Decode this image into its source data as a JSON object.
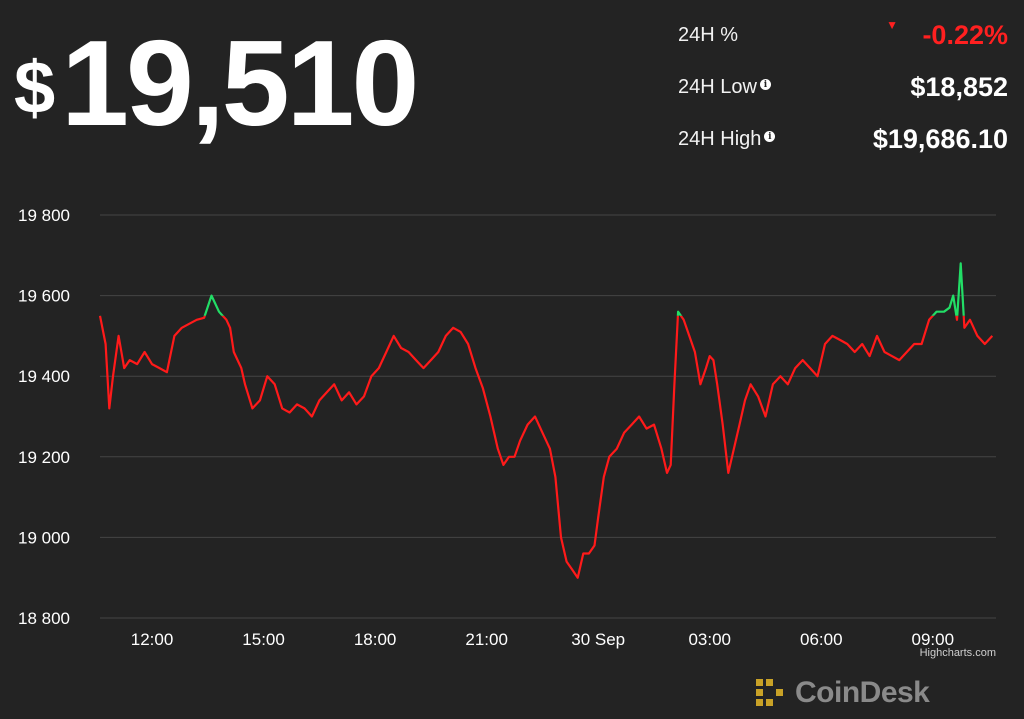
{
  "header": {
    "currency_symbol": "$",
    "price": "19,510"
  },
  "stats": [
    {
      "label": "24H %",
      "value": "-0.22%",
      "negative": true,
      "info": false
    },
    {
      "label": "24H Low",
      "value": "$18,852",
      "negative": false,
      "info": true
    },
    {
      "label": "24H High",
      "value": "$19,686.10",
      "negative": false,
      "info": true
    }
  ],
  "colors": {
    "background": "#232323",
    "down_line": "#ff1a1a",
    "up_line": "#22dd66",
    "grid": "#444444",
    "axis_text": "#ffffff",
    "brand_gray": "#8a8a8a",
    "brand_gold": "#c9a227"
  },
  "chart_data": {
    "type": "line",
    "ylim": [
      18800,
      19800
    ],
    "yticks": [
      19800,
      19600,
      19400,
      19200,
      19000,
      18800
    ],
    "ytick_labels": [
      "19 800",
      "19 600",
      "19 400",
      "19 200",
      "19 000",
      "18 800"
    ],
    "xlim": [
      10.6,
      34.7
    ],
    "xticks": [
      12,
      15,
      18,
      21,
      24,
      27,
      30,
      33
    ],
    "xtick_labels": [
      "12:00",
      "15:00",
      "18:00",
      "21:00",
      "30 Sep",
      "03:00",
      "06:00",
      "09:00"
    ],
    "reference_price": 19550,
    "grid": true,
    "legend": "none",
    "series": [
      {
        "x": [
          10.6,
          10.75,
          10.85,
          10.95,
          11.1,
          11.25,
          11.4,
          11.6,
          11.8,
          12.0,
          12.2,
          12.4,
          12.6,
          12.8,
          13.0,
          13.2,
          13.4,
          13.6,
          13.8,
          13.9,
          14.0,
          14.1,
          14.2,
          14.3,
          14.4,
          14.5,
          14.7,
          14.9,
          15.1,
          15.3,
          15.5,
          15.7,
          15.9,
          16.1,
          16.3,
          16.5,
          16.7,
          16.9,
          17.1,
          17.3,
          17.5,
          17.7,
          17.9,
          18.1,
          18.3,
          18.5,
          18.7,
          18.9,
          19.1,
          19.3,
          19.5,
          19.7,
          19.9,
          20.1,
          20.3,
          20.5,
          20.7,
          20.9,
          21.1,
          21.3,
          21.45,
          21.6,
          21.75,
          21.9,
          22.1,
          22.3,
          22.5,
          22.7,
          22.85,
          23.0,
          23.15,
          23.3,
          23.45,
          23.6,
          23.75,
          23.9,
          24.0,
          24.15,
          24.3,
          24.5,
          24.7,
          24.9,
          25.1,
          25.3,
          25.5,
          25.7,
          25.85,
          25.95,
          26.05,
          26.15,
          26.3,
          26.45,
          26.6,
          26.75,
          26.9,
          27.0,
          27.1,
          27.2,
          27.35,
          27.5,
          27.65,
          27.8,
          27.95,
          28.1,
          28.3,
          28.5,
          28.7,
          28.9,
          29.1,
          29.3,
          29.5,
          29.7,
          29.9,
          30.1,
          30.3,
          30.5,
          30.7,
          30.9,
          31.1,
          31.3,
          31.5,
          31.7,
          31.9,
          32.1,
          32.3,
          32.5,
          32.7,
          32.9,
          33.1,
          33.3,
          33.45,
          33.55,
          33.65,
          33.75,
          33.85,
          34.0,
          34.2,
          34.4,
          34.6
        ],
        "y": [
          19550,
          19480,
          19320,
          19400,
          19500,
          19420,
          19440,
          19430,
          19460,
          19430,
          19420,
          19410,
          19500,
          19520,
          19530,
          19540,
          19545,
          19600,
          19560,
          19550,
          19540,
          19520,
          19460,
          19440,
          19420,
          19380,
          19320,
          19340,
          19400,
          19380,
          19320,
          19310,
          19330,
          19320,
          19300,
          19340,
          19360,
          19380,
          19340,
          19360,
          19330,
          19350,
          19400,
          19420,
          19460,
          19500,
          19470,
          19460,
          19440,
          19420,
          19440,
          19460,
          19500,
          19520,
          19510,
          19480,
          19420,
          19370,
          19300,
          19220,
          19180,
          19200,
          19200,
          19240,
          19280,
          19300,
          19260,
          19220,
          19150,
          19000,
          18940,
          18920,
          18900,
          18960,
          18960,
          18980,
          19050,
          19150,
          19200,
          19220,
          19260,
          19280,
          19300,
          19270,
          19280,
          19220,
          19160,
          19180,
          19380,
          19560,
          19540,
          19500,
          19460,
          19380,
          19420,
          19450,
          19440,
          19380,
          19280,
          19160,
          19220,
          19280,
          19340,
          19380,
          19350,
          19300,
          19380,
          19400,
          19380,
          19420,
          19440,
          19420,
          19400,
          19480,
          19500,
          19490,
          19480,
          19460,
          19480,
          19450,
          19500,
          19460,
          19450,
          19440,
          19460,
          19480,
          19480,
          19540,
          19560,
          19560,
          19570,
          19600,
          19540,
          19680,
          19520,
          19540,
          19500,
          19480,
          19500
        ]
      }
    ]
  },
  "credits": {
    "text": "Highcharts.com"
  },
  "brand": {
    "name": "CoinDesk"
  }
}
